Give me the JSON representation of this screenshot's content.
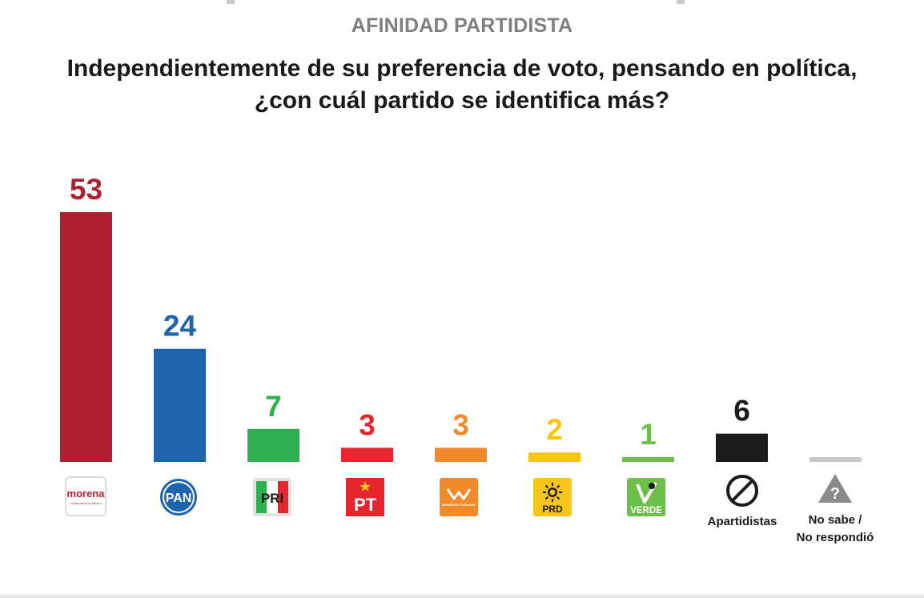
{
  "section_title": "AFINIDAD PARTIDISTA",
  "question": {
    "line1": "Independientemente de su preferencia de voto, pensando en política,",
    "line2": "¿con cuál partido se identifica más?"
  },
  "chart_data": {
    "type": "bar",
    "title": "",
    "categories": [
      "morena",
      "PAN",
      "PRI",
      "PT",
      "MC",
      "PRD",
      "VERDE",
      "Apartidistas",
      "No sabe / No respondió"
    ],
    "values": [
      53,
      24,
      7,
      3,
      3,
      2,
      1,
      6,
      null
    ],
    "value_labels": [
      "53",
      "24",
      "7",
      "3",
      "3",
      "2",
      "1",
      "6",
      ""
    ],
    "colors": [
      "#b11f2e",
      "#1e64ac",
      "#2db14e",
      "#e5262d",
      "#f28a2a",
      "#f7c41c",
      "#6cc04a",
      "#1b1b1b",
      "#c8c8c8"
    ],
    "label_colors": [
      "#b11f2e",
      "#1e64ac",
      "#2db14e",
      "#e5262d",
      "#f28a2a",
      "#f7c41c",
      "#6cc04a",
      "#1b1b1b",
      "#c8c8c8"
    ],
    "xlabel": "",
    "ylabel": "",
    "ylim": [
      0,
      53
    ],
    "grid": false,
    "legend": "none"
  },
  "logos": [
    {
      "icon": "morena-logo",
      "text": "morena",
      "subtext": "La esperanza de México",
      "color": "#b11f2e"
    },
    {
      "icon": "pan-logo",
      "text": "PAN",
      "color": "#1e64ac"
    },
    {
      "icon": "pri-logo",
      "text": "PRI",
      "colors": [
        "#2db14e",
        "#ffffff",
        "#e5262d"
      ]
    },
    {
      "icon": "pt-logo",
      "text": "PT",
      "color": "#e5262d"
    },
    {
      "icon": "mc-logo",
      "text": "MOVIMIENTO CIUDADANO",
      "color": "#f28a2a"
    },
    {
      "icon": "prd-logo",
      "text": "PRD",
      "color": "#f7c41c"
    },
    {
      "icon": "verde-logo",
      "text": "VERDE",
      "color": "#6cc04a"
    },
    {
      "icon": "no-entry-icon",
      "label": "Apartidistas"
    },
    {
      "icon": "question-triangle-icon",
      "label_line1": "No sabe /",
      "label_line2": "No respondió"
    }
  ]
}
